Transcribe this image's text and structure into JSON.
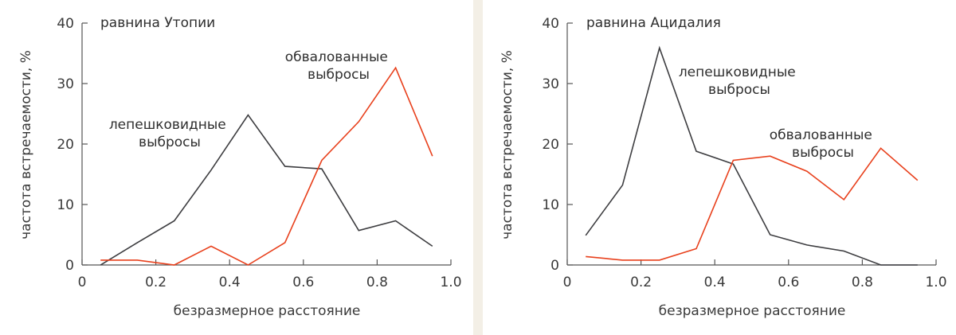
{
  "chart_data": [
    {
      "type": "line",
      "title": "равнина Утопии",
      "xlabel": "безразмерное расстояние",
      "ylabel": "частота встречаемости, %",
      "xlim": [
        0,
        1.0
      ],
      "ylim": [
        0,
        40
      ],
      "xticks": [
        "0",
        "0.2",
        "0.4",
        "0.6",
        "0.8",
        "1.0"
      ],
      "yticks": [
        "0",
        "10",
        "20",
        "30",
        "40"
      ],
      "series": [
        {
          "name": "лепешковидные выбросы",
          "color": "#3d3d40",
          "x": [
            0.05,
            0.15,
            0.25,
            0.35,
            0.45,
            0.55,
            0.65,
            0.75,
            0.85,
            0.95
          ],
          "y": [
            0,
            3.7,
            7.3,
            15.7,
            24.8,
            16.3,
            15.9,
            5.7,
            7.3,
            3.1
          ]
        },
        {
          "name": "обвалованные выбросы",
          "color": "#e8401c",
          "x": [
            0.05,
            0.15,
            0.25,
            0.35,
            0.45,
            0.55,
            0.65,
            0.75,
            0.85,
            0.95
          ],
          "y": [
            0.8,
            0.8,
            0,
            3.1,
            0,
            3.7,
            17.3,
            23.7,
            32.6,
            18.0
          ]
        }
      ],
      "annotations": [
        {
          "series": 0,
          "lines": [
            "лепешковидные",
            "выбросы"
          ]
        },
        {
          "series": 1,
          "lines": [
            "обвалованные",
            "выбросы"
          ]
        }
      ]
    },
    {
      "type": "line",
      "title": "равнина Ацидалия",
      "xlabel": "безразмерное расстояние",
      "ylabel": "частота встречаемости, %",
      "xlim": [
        0,
        1.0
      ],
      "ylim": [
        0,
        40
      ],
      "xticks": [
        "0",
        "0.2",
        "0.4",
        "0.6",
        "0.8",
        "1.0"
      ],
      "yticks": [
        "0",
        "10",
        "20",
        "30",
        "40"
      ],
      "series": [
        {
          "name": "лепешковидные выбросы",
          "color": "#3d3d40",
          "x": [
            0.05,
            0.15,
            0.25,
            0.35,
            0.45,
            0.55,
            0.65,
            0.75,
            0.85,
            0.95
          ],
          "y": [
            4.9,
            13.2,
            35.9,
            18.8,
            16.7,
            5.0,
            3.3,
            2.3,
            0,
            0
          ]
        },
        {
          "name": "обвалованные выбросы",
          "color": "#e8401c",
          "x": [
            0.05,
            0.15,
            0.25,
            0.35,
            0.45,
            0.55,
            0.65,
            0.75,
            0.85,
            0.95
          ],
          "y": [
            1.4,
            0.8,
            0.8,
            2.7,
            17.3,
            18.0,
            15.5,
            10.8,
            19.3,
            14.0
          ]
        }
      ],
      "annotations": [
        {
          "series": 0,
          "lines": [
            "лепешковидные",
            "выбросы"
          ]
        },
        {
          "series": 1,
          "lines": [
            "обвалованные",
            "выбросы"
          ]
        }
      ]
    }
  ]
}
